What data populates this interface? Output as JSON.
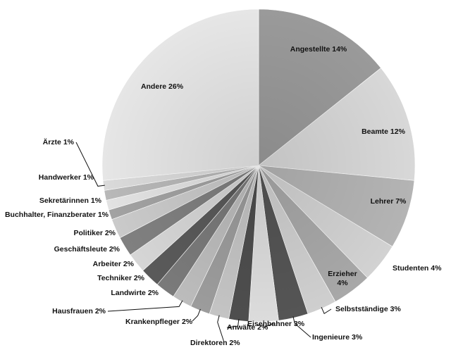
{
  "chart_data": {
    "type": "pie",
    "title": "",
    "unit": "%",
    "slices": [
      {
        "name": "Angestellte",
        "label": "Angestellte 14%",
        "value": 14,
        "color": "#9a9a9a"
      },
      {
        "name": "Beamte",
        "label": "Beamte 12%",
        "value": 12,
        "color": "#d8d8d8"
      },
      {
        "name": "Lehrer",
        "label": "Lehrer 7%",
        "value": 7,
        "color": "#b4b4b4"
      },
      {
        "name": "Studenten",
        "label": "Studenten 4%",
        "value": 4,
        "color": "#d2d2d2"
      },
      {
        "name": "Erzieher",
        "label": "Erzieher 4%",
        "label_lines": [
          "Erzieher",
          "4%"
        ],
        "value": 4,
        "color": "#a8a8a8"
      },
      {
        "name": "Selbstständige",
        "label": "Selbstständige 3%",
        "value": 3,
        "color": "#cfcfcf"
      },
      {
        "name": "Ingenieure",
        "label": "Ingenieure 3%",
        "value": 3,
        "color": "#555555"
      },
      {
        "name": "Eisenbahner",
        "label": "Eisenbahner 3%",
        "value": 3,
        "color": "#dcdcdc"
      },
      {
        "name": "Anwälte",
        "label": "Anwälte 2%",
        "value": 2,
        "color": "#4e4e4e"
      },
      {
        "name": "Direktoren",
        "label": "Direktoren 2%",
        "value": 2,
        "color": "#c4c4c4"
      },
      {
        "name": "Krankenpfleger",
        "label": "Krankenpfleger 2%",
        "value": 2,
        "color": "#9c9c9c"
      },
      {
        "name": "Hausfrauen",
        "label": "Hausfrauen 2%",
        "value": 2,
        "color": "#bcbcbc"
      },
      {
        "name": "Landwirte",
        "label": "Landwirte 2%",
        "value": 2,
        "color": "#7a7a7a"
      },
      {
        "name": "Techniker",
        "label": "Techniker 2%",
        "value": 2,
        "color": "#5a5a5a"
      },
      {
        "name": "Arbeiter",
        "label": "Arbeiter 2%",
        "value": 2,
        "color": "#d6d6d6"
      },
      {
        "name": "Geschäftsleute",
        "label": "Geschäftsleute 2%",
        "value": 2,
        "color": "#808080"
      },
      {
        "name": "Politiker",
        "label": "Politiker 2%",
        "value": 2,
        "color": "#cacaca"
      },
      {
        "name": "Buchhalter, Finanzberater",
        "label": "Buchhalter, Finanzberater 1%",
        "value": 1,
        "color": "#a2a2a2"
      },
      {
        "name": "Sekretärinnen",
        "label": "Sekretärinnen 1%",
        "value": 1,
        "color": "#e2e2e2"
      },
      {
        "name": "Handwerker",
        "label": "Handwerker 1%",
        "value": 1,
        "color": "#b8b8b8"
      },
      {
        "name": "Ärzte",
        "label": "Ärzte 1%",
        "value": 1,
        "color": "#dadada"
      },
      {
        "name": "Andere",
        "label": "Andere 26%",
        "value": 26,
        "color": "#e6e6e6"
      }
    ],
    "start": "12 o'clock",
    "direction": "clockwise",
    "legend": "none (labels on and around slices)"
  }
}
